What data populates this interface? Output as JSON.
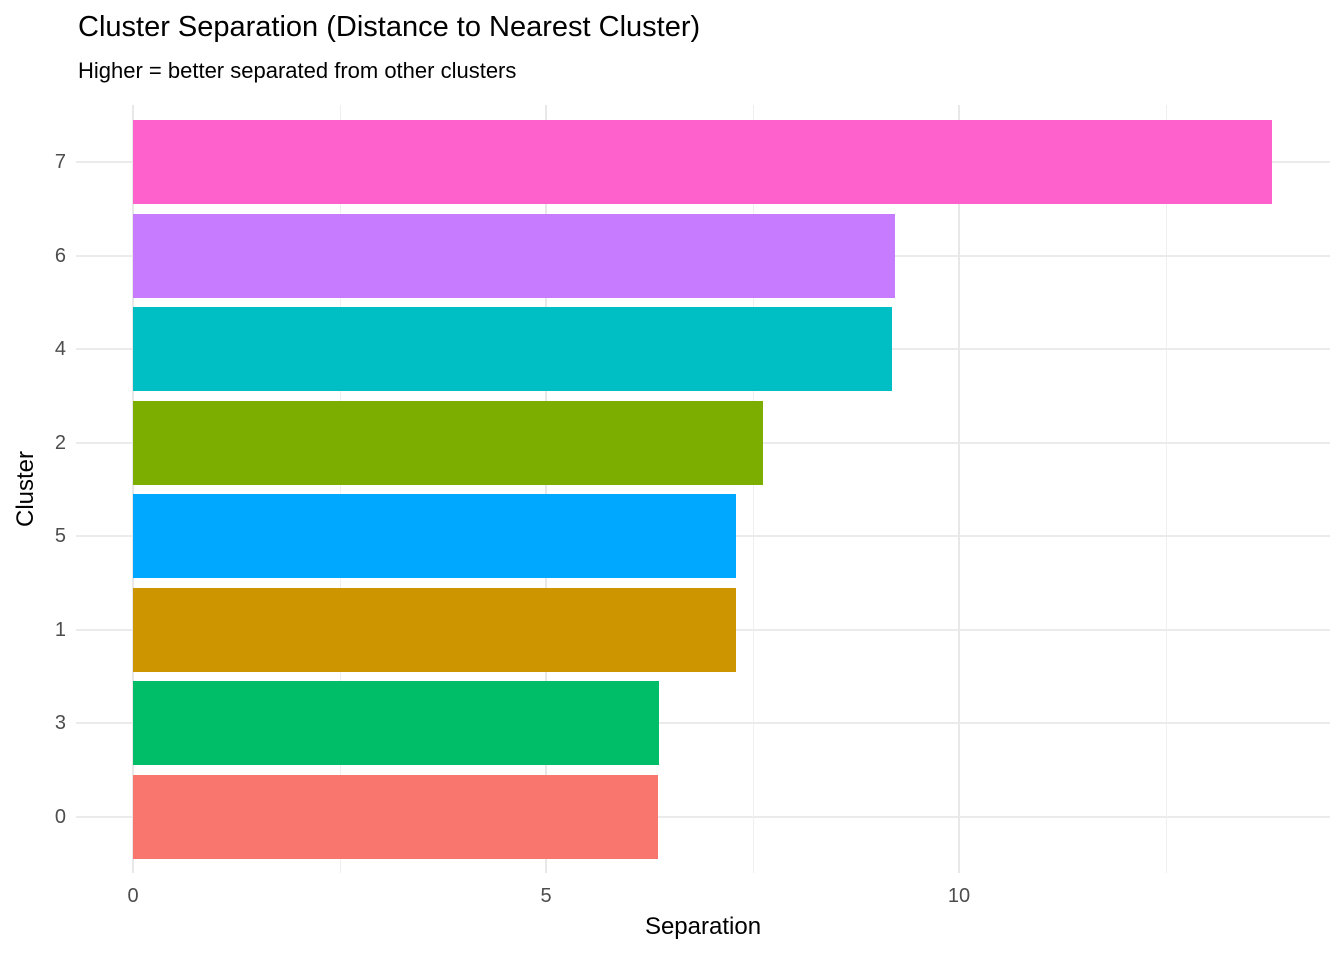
{
  "chart_data": {
    "type": "bar",
    "orientation": "horizontal",
    "title": "Cluster Separation (Distance to Nearest Cluster)",
    "subtitle": "Higher = better separated from other clusters",
    "xlabel": "Separation",
    "ylabel": "Cluster",
    "categories": [
      "7",
      "6",
      "4",
      "2",
      "5",
      "1",
      "3",
      "0"
    ],
    "values": [
      13.79,
      9.22,
      9.19,
      7.63,
      7.3,
      7.3,
      6.37,
      6.36
    ],
    "bar_colors": [
      "#FF61CC",
      "#C77CFF",
      "#00BFC4",
      "#7CAE00",
      "#00A9FF",
      "#CD9600",
      "#00BE67",
      "#F8766D"
    ],
    "x_major_ticks": [
      0,
      5,
      10
    ],
    "x_minor_ticks": [
      2.5,
      7.5,
      12.5
    ],
    "xlim": [
      -0.69,
      14.49
    ],
    "ylim_note": "discrete axis, 8 categories, top-to-bottom as listed",
    "grid": "major and minor vertical gridlines, horizontal gridline per category",
    "legend": "none",
    "background_color": "#ffffff",
    "gridline_color": "#ebebeb",
    "tick_label_color": "#4d4d4d",
    "text_color": "#000000"
  }
}
